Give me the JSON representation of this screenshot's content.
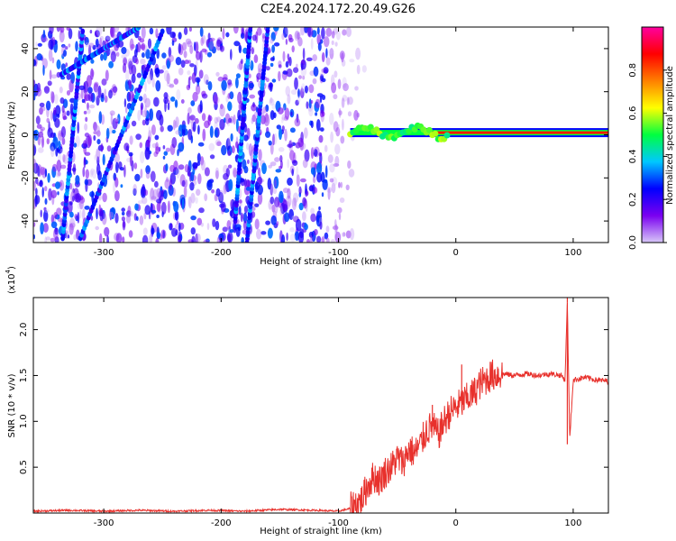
{
  "figure": {
    "title": "C2E4.2024.172.20.49.G26"
  },
  "chart_data": [
    {
      "type": "heatmap",
      "title": "C2E4.2024.172.20.49.G26",
      "xlabel": "Height of straight line (km)",
      "ylabel": "Frequency (Hz)",
      "xlim": [
        -360,
        130
      ],
      "ylim": [
        -50,
        50
      ],
      "x_ticks": [
        -300,
        -200,
        -100,
        0,
        100
      ],
      "y_ticks": [
        -40,
        -20,
        0,
        20,
        40
      ],
      "grid": false,
      "colorbar": {
        "label": "Normalized spectral amplitude",
        "range": [
          0.0,
          1.0
        ],
        "ticks": [
          0.0,
          0.2,
          0.4,
          0.6,
          0.8
        ],
        "colormap": [
          "#d8c8f8",
          "#7a00f0",
          "#0000ff",
          "#00c8ff",
          "#00ff40",
          "#ffff00",
          "#ff8000",
          "#ff0000",
          "#ff00a0"
        ]
      },
      "features": {
        "noise_region_x": [
          -360,
          -75
        ],
        "carrier_tone": {
          "x_start": -90,
          "x_end": 130,
          "frequency": 1,
          "amplitude": 0.85
        },
        "spurious_lines": [
          {
            "x": [
              -335,
              -318
            ],
            "y": [
              -48,
              48
            ]
          },
          {
            "x": [
              -336,
              -270
            ],
            "y": [
              28,
              50
            ]
          },
          {
            "x": [
              -320,
              -250
            ],
            "y": [
              -48,
              48
            ]
          },
          {
            "x": [
              -188,
              -175
            ],
            "y": [
              -40,
              50
            ]
          },
          {
            "x": [
              -178,
              -160
            ],
            "y": [
              -50,
              50
            ]
          }
        ]
      }
    },
    {
      "type": "line",
      "xlabel": "Height of straight line (km)",
      "ylabel": "SNR (10 * v/v)",
      "y_multiplier_label": "(x10",
      "y_multiplier_exp": "4",
      "y_multiplier_close": ")",
      "xlim": [
        -360,
        130
      ],
      "ylim": [
        0,
        2.35
      ],
      "x_ticks": [
        -300,
        -200,
        -100,
        0,
        100
      ],
      "y_ticks": [
        0.5,
        1.0,
        1.5,
        2.0
      ],
      "grid": false,
      "series": [
        {
          "color": "#e8312c",
          "x": [
            -360,
            -330,
            -300,
            -270,
            -240,
            -210,
            -180,
            -150,
            -120,
            -100,
            -90,
            -80,
            -75,
            -70,
            -65,
            -60,
            -55,
            -50,
            -45,
            -40,
            -35,
            -30,
            -25,
            -20,
            -15,
            -10,
            -5,
            0,
            5,
            10,
            15,
            20,
            25,
            30,
            40,
            50,
            60,
            70,
            80,
            90,
            93,
            95,
            97,
            100,
            110,
            120,
            130
          ],
          "y": [
            0.02,
            0.03,
            0.02,
            0.03,
            0.02,
            0.03,
            0.02,
            0.04,
            0.03,
            0.02,
            0.05,
            0.15,
            0.3,
            0.4,
            0.35,
            0.45,
            0.5,
            0.6,
            0.55,
            0.7,
            0.65,
            0.75,
            0.9,
            0.95,
            0.85,
            1.0,
            1.1,
            1.15,
            1.2,
            1.25,
            1.3,
            1.4,
            1.45,
            1.5,
            1.52,
            1.5,
            1.52,
            1.5,
            1.52,
            1.5,
            1.45,
            2.3,
            0.8,
            1.45,
            1.48,
            1.45,
            1.44
          ]
        }
      ],
      "annotations": [
        {
          "x": -20,
          "y": 1.18,
          "kind": "spike"
        },
        {
          "x": 5,
          "y": 1.62,
          "kind": "spike"
        },
        {
          "x": 95,
          "y": 2.35,
          "kind": "spike"
        },
        {
          "x": 95,
          "y": 0.75,
          "kind": "dip"
        }
      ]
    }
  ]
}
